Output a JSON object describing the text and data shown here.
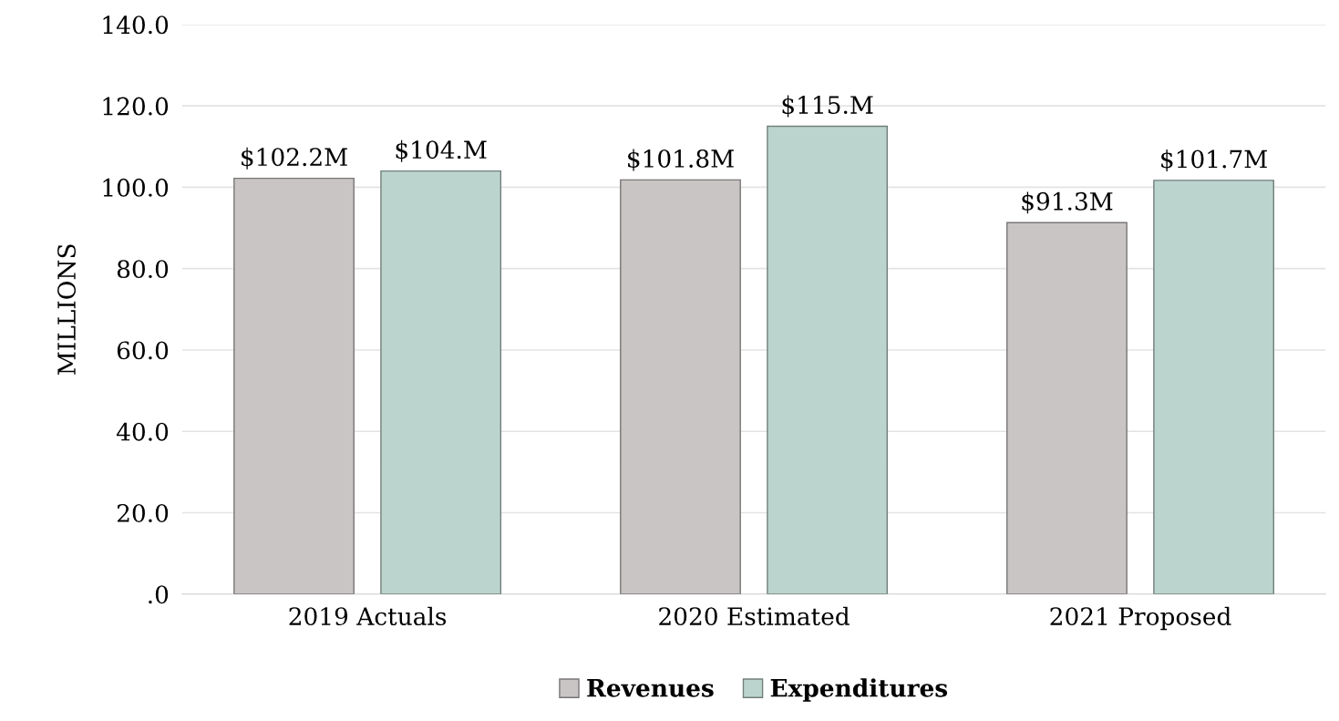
{
  "chart_data": {
    "type": "bar",
    "ylabel": "MILLIONS",
    "categories": [
      "2019 Actuals",
      "2020 Estimated",
      "2021 Proposed"
    ],
    "series": [
      {
        "name": "Revenues",
        "color": "#c9c5c4",
        "values": [
          102.2,
          101.8,
          91.3
        ],
        "value_labels": [
          "$102.2M",
          "$101.8M",
          "$91.3M"
        ]
      },
      {
        "name": "Expenditures",
        "color": "#bcd4ce",
        "values": [
          104.0,
          115.0,
          101.7
        ],
        "value_labels": [
          "$104.M",
          "$115.M",
          "$101.7M"
        ]
      }
    ],
    "ylim": [
      0,
      140
    ],
    "yticks": [
      {
        "value": 0,
        "label": ".0"
      },
      {
        "value": 20,
        "label": "20.0"
      },
      {
        "value": 40,
        "label": "40.0"
      },
      {
        "value": 60,
        "label": "60.0"
      },
      {
        "value": 80,
        "label": "80.0"
      },
      {
        "value": 100,
        "label": "100.0"
      },
      {
        "value": 120,
        "label": "120.0"
      },
      {
        "value": 140,
        "label": "140.0"
      }
    ],
    "grid": "y",
    "legend": "bottom"
  }
}
